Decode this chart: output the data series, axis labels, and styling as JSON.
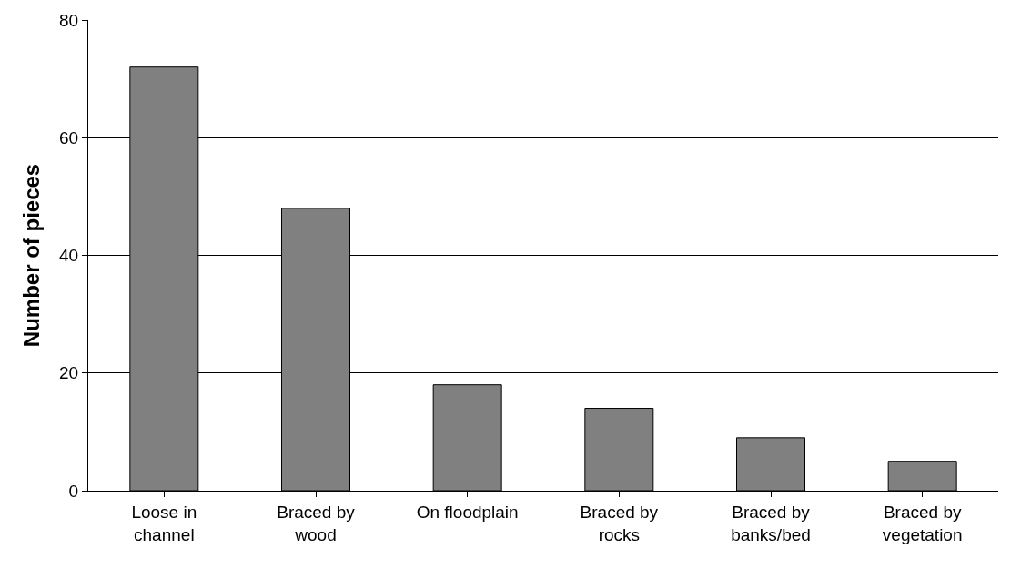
{
  "chart_data": {
    "type": "bar",
    "ylabel": "Number of pieces",
    "categories": [
      "Loose in\nchannel",
      "Braced by\nwood",
      "On floodplain",
      "Braced by\nrocks",
      "Braced by\nbanks/bed",
      "Braced by\nvegetation"
    ],
    "values": [
      72,
      48,
      18,
      14,
      9,
      5
    ],
    "color": "#808080",
    "ylim": [
      0,
      80
    ],
    "yticks": [
      0,
      20,
      40,
      60,
      80
    ],
    "grid": "y"
  }
}
